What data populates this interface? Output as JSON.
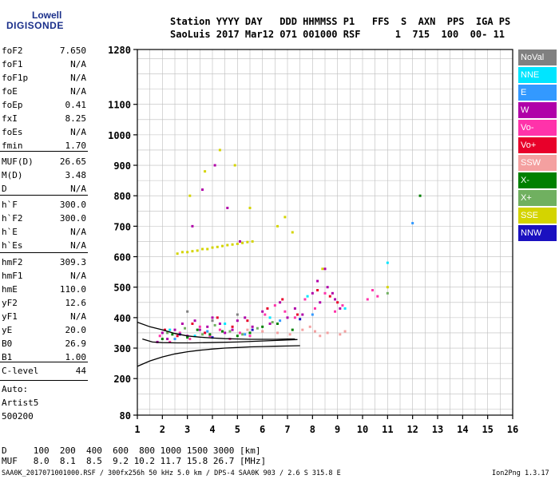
{
  "logo": {
    "line1": "Lowell",
    "line2": "DIGISONDE"
  },
  "header": {
    "labels": "Station YYYY DAY   DDD HHMMSS P1   FFS  S  AXN  PPS  IGA PS",
    "values": "SaoLuis 2017 Mar12 071 001000 RSF      1  715  100  00- 11"
  },
  "params": [
    {
      "name": "foF2",
      "value": "7.650"
    },
    {
      "name": "foF1",
      "value": "N/A"
    },
    {
      "name": "foF1p",
      "value": "N/A"
    },
    {
      "name": "foE",
      "value": "N/A"
    },
    {
      "name": "foEp",
      "value": "0.41"
    },
    {
      "name": "fxI",
      "value": "8.25"
    },
    {
      "name": "foEs",
      "value": "N/A"
    },
    {
      "name": "fmin",
      "value": "1.70"
    },
    {
      "name": "MUF(D)",
      "value": "26.65"
    },
    {
      "name": "M(D)",
      "value": "3.48"
    },
    {
      "name": "D",
      "value": "N/A"
    },
    {
      "name": "h`F",
      "value": "300.0"
    },
    {
      "name": "h`F2",
      "value": "300.0"
    },
    {
      "name": "h`E",
      "value": "N/A"
    },
    {
      "name": "h`Es",
      "value": "N/A"
    },
    {
      "name": "hmF2",
      "value": "309.3"
    },
    {
      "name": "hmF1",
      "value": "N/A"
    },
    {
      "name": "hmE",
      "value": "110.0"
    },
    {
      "name": "yF2",
      "value": "12.6"
    },
    {
      "name": "yF1",
      "value": "N/A"
    },
    {
      "name": "yE",
      "value": "20.0"
    },
    {
      "name": "B0",
      "value": "26.9"
    },
    {
      "name": "B1",
      "value": "1.00"
    }
  ],
  "clevel": {
    "name": "C-level",
    "value": "44"
  },
  "auto": [
    "Auto:",
    "Artist5",
    "500200"
  ],
  "footer": {
    "d_row": "D     100  200  400  600  800 1000 1500 3000 [km]",
    "muf_row": "MUF   8.0  8.1  8.5  9.2 10.2 11.7 15.8 26.7 [MHz]",
    "file_line": "SAA0K_2017071001000.RSF / 300fx256h 50 kHz 5.0 km / DPS-4 SAA0K 903 / 2.6 S 315.8 E",
    "version": "Ion2Png 1.3.17"
  },
  "legend": [
    {
      "label": "NoVal",
      "color": "#808080"
    },
    {
      "label": "NNE",
      "color": "#00e5ff"
    },
    {
      "label": "E",
      "color": "#3399ff"
    },
    {
      "label": "W",
      "color": "#b000a8"
    },
    {
      "label": "Vo-",
      "color": "#ff33aa"
    },
    {
      "label": "Vo+",
      "color": "#e8002a"
    },
    {
      "label": "SSW",
      "color": "#f4a0a0"
    },
    {
      "label": "X-",
      "color": "#008000"
    },
    {
      "label": "X+",
      "color": "#70b060"
    },
    {
      "label": "SSE",
      "color": "#d4d400"
    },
    {
      "label": "NNW",
      "color": "#1a10c0"
    }
  ],
  "chart_data": {
    "type": "scatter",
    "xlim": [
      1,
      16
    ],
    "ylim": [
      80,
      1280
    ],
    "x_ticks": [
      1,
      2,
      3,
      4,
      5,
      6,
      7,
      8,
      9,
      10,
      11,
      12,
      13,
      14,
      15,
      16
    ],
    "y_ticks": [
      80,
      200,
      300,
      400,
      500,
      600,
      700,
      800,
      900,
      1000,
      1100,
      1280
    ],
    "grid": true,
    "legend_position": "right",
    "series": [
      {
        "color": "#b000a8",
        "x": [
          1.8,
          2.0,
          2.2,
          2.5,
          2.8,
          3.0,
          3.3,
          3.5,
          3.8,
          4.0,
          4.3,
          4.5,
          4.8,
          5.0,
          5.3,
          5.6,
          6.0,
          6.3,
          6.7,
          7.0,
          7.3,
          7.6,
          8.0,
          8.3,
          8.6,
          8.9,
          9.1,
          3.2,
          3.6,
          4.1,
          4.6,
          5.1,
          8.2,
          8.5,
          8.8
        ],
        "y": [
          320,
          350,
          330,
          360,
          380,
          340,
          390,
          360,
          370,
          400,
          380,
          350,
          360,
          390,
          400,
          370,
          420,
          380,
          450,
          400,
          430,
          410,
          480,
          450,
          500,
          460,
          430,
          700,
          820,
          900,
          760,
          650,
          520,
          560,
          480
        ]
      },
      {
        "color": "#ff33aa",
        "x": [
          1.9,
          2.3,
          2.7,
          3.1,
          3.5,
          3.9,
          4.3,
          4.7,
          5.1,
          5.5,
          6.1,
          6.5,
          6.9,
          7.3,
          7.7,
          8.1,
          8.5,
          8.9,
          9.2,
          10.2,
          10.4,
          10.6
        ],
        "y": [
          340,
          320,
          350,
          330,
          370,
          340,
          360,
          330,
          350,
          340,
          410,
          440,
          420,
          400,
          460,
          430,
          480,
          420,
          440,
          460,
          490,
          470
        ]
      },
      {
        "color": "#e8002a",
        "x": [
          2.1,
          2.6,
          3.2,
          3.7,
          4.2,
          4.8,
          5.4,
          6.2,
          6.8,
          7.4,
          8.2,
          8.7,
          9.0
        ],
        "y": [
          360,
          340,
          380,
          350,
          400,
          370,
          390,
          430,
          460,
          410,
          490,
          470,
          450
        ]
      },
      {
        "color": "#008000",
        "x": [
          2.0,
          2.4,
          3.0,
          3.4,
          3.9,
          4.4,
          5.0,
          5.5,
          6.0,
          6.6,
          7.2,
          12.3
        ],
        "y": [
          330,
          345,
          335,
          360,
          345,
          355,
          340,
          350,
          370,
          380,
          360,
          800
        ]
      },
      {
        "color": "#70b060",
        "x": [
          2.2,
          2.9,
          3.6,
          4.1,
          4.7,
          5.2,
          5.8,
          6.4,
          11.0
        ],
        "y": [
          350,
          365,
          345,
          375,
          355,
          345,
          365,
          385,
          480
        ]
      },
      {
        "color": "#d4d400",
        "x": [
          2.6,
          2.8,
          3.0,
          3.2,
          3.4,
          3.6,
          3.8,
          4.0,
          4.2,
          4.4,
          4.6,
          4.8,
          5.0,
          5.2,
          5.4,
          5.6,
          3.1,
          3.7,
          4.3,
          4.9,
          5.5,
          6.6,
          6.9,
          7.2,
          8.4,
          11.0
        ],
        "y": [
          610,
          615,
          615,
          618,
          620,
          625,
          625,
          630,
          632,
          635,
          638,
          640,
          642,
          645,
          648,
          650,
          800,
          880,
          950,
          900,
          760,
          700,
          730,
          680,
          560,
          500
        ]
      },
      {
        "color": "#00e5ff",
        "x": [
          2.3,
          3.3,
          4.5,
          6.3,
          7.8,
          9.3,
          11.0
        ],
        "y": [
          360,
          340,
          380,
          400,
          470,
          430,
          580
        ]
      },
      {
        "color": "#3399ff",
        "x": [
          2.5,
          3.8,
          5.3,
          6.7,
          8.0,
          12.0
        ],
        "y": [
          330,
          355,
          345,
          390,
          410,
          710
        ]
      },
      {
        "color": "#1a10c0",
        "x": [
          2.7,
          4.0,
          5.6,
          7.5
        ],
        "y": [
          345,
          335,
          360,
          395
        ]
      },
      {
        "color": "#f4a0a0",
        "x": [
          5.4,
          6.0,
          6.6,
          7.1,
          7.6,
          8.1,
          8.6,
          9.1,
          9.3,
          7.9,
          8.3
        ],
        "y": [
          360,
          355,
          350,
          345,
          360,
          355,
          350,
          345,
          355,
          370,
          340
        ]
      },
      {
        "color": "#808080",
        "x": [
          3.0,
          4.0,
          5.0
        ],
        "y": [
          420,
          390,
          410
        ]
      }
    ],
    "profile_lines": [
      {
        "x": [
          1.0,
          1.5,
          2.0,
          2.5,
          3.0,
          3.5,
          4.0,
          4.5,
          5.0,
          5.5,
          6.0,
          6.5,
          7.0,
          7.5
        ],
        "y": [
          240,
          258,
          271,
          281,
          288,
          293,
          297,
          300,
          302,
          304,
          305,
          306,
          307,
          308
        ]
      },
      {
        "x": [
          1.0,
          1.5,
          2.0,
          2.5,
          3.0,
          3.5,
          4.0,
          4.5,
          5.0,
          5.5,
          6.0,
          6.5,
          7.0,
          7.3
        ],
        "y": [
          385,
          370,
          360,
          348,
          340,
          336,
          333,
          331,
          330,
          329,
          329,
          329,
          330,
          330
        ]
      },
      {
        "x": [
          1.2,
          1.6,
          2.0,
          2.6,
          3.2,
          3.8,
          4.4,
          5.0,
          5.6,
          6.2,
          6.8,
          7.4
        ],
        "y": [
          330,
          320,
          318,
          317,
          317,
          318,
          319,
          320,
          322,
          324,
          326,
          328
        ]
      }
    ]
  }
}
